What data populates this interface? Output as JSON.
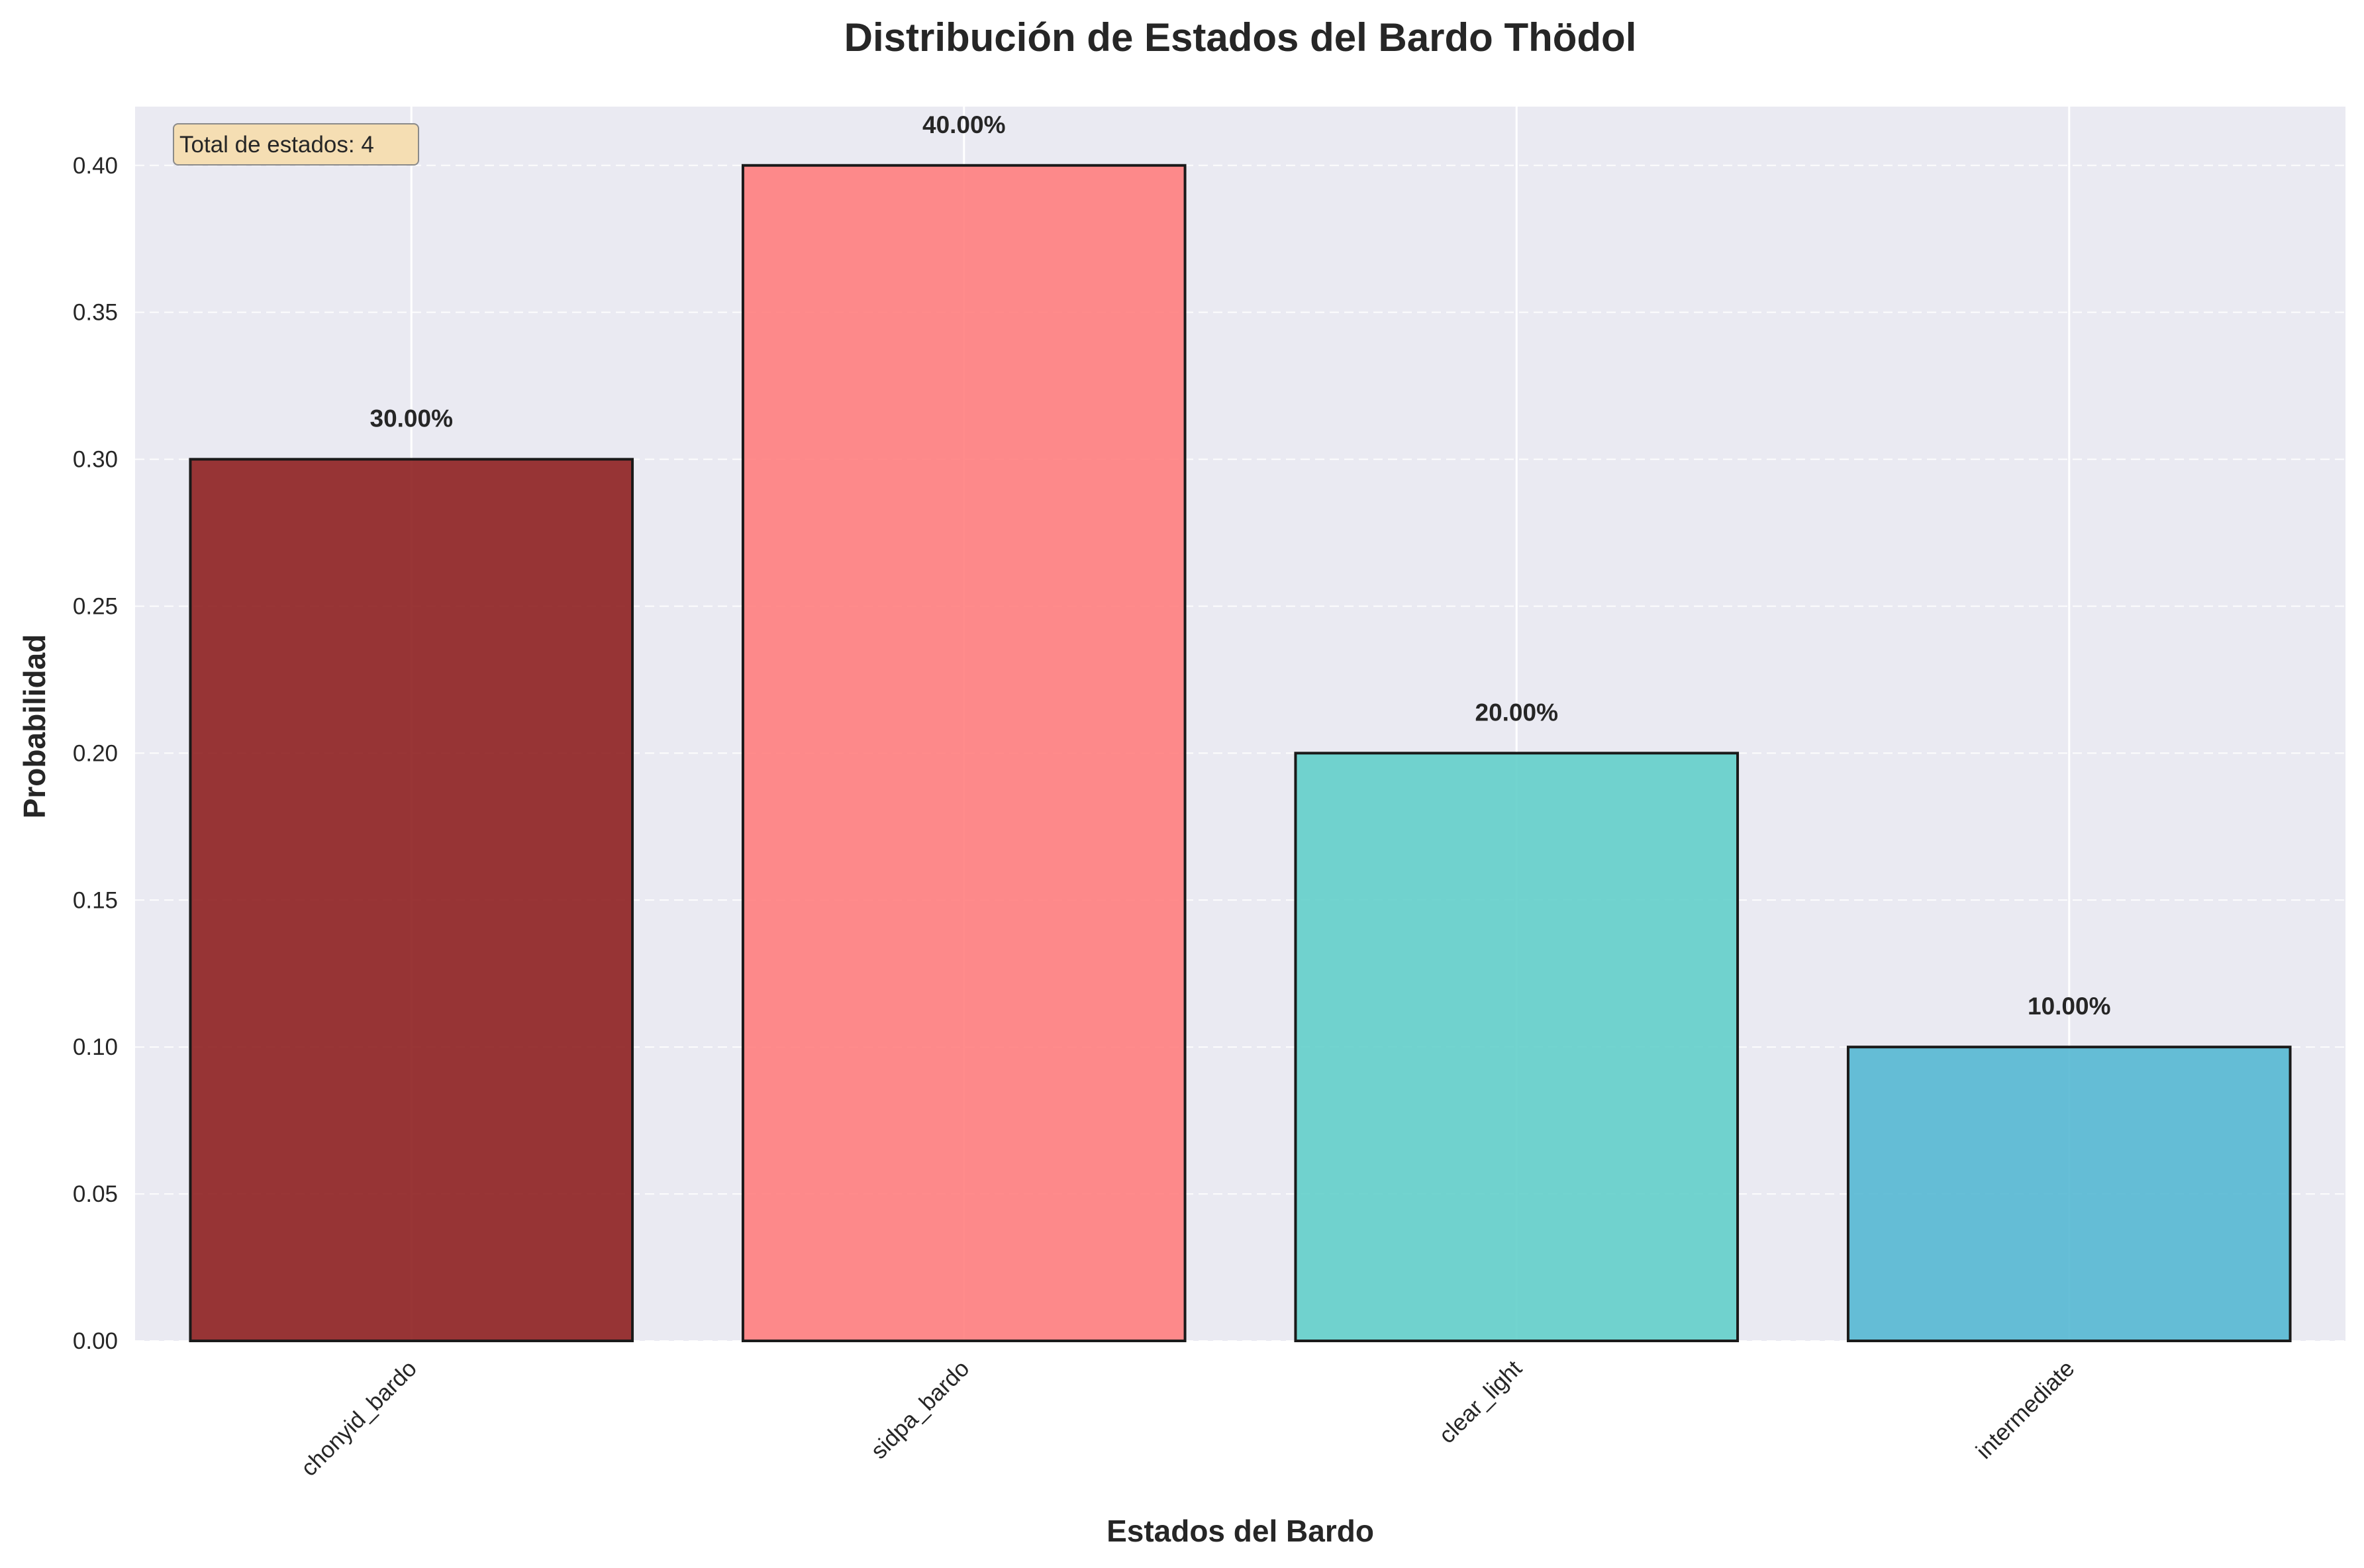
{
  "chart_data": {
    "type": "bar",
    "title": "Distribución de Estados del Bardo Thödol",
    "xlabel": "Estados del Bardo",
    "ylabel": "Probabilidad",
    "categories": [
      "chonyid_bardo",
      "sidpa_bardo",
      "clear_light",
      "intermediate"
    ],
    "values": [
      0.3,
      0.4,
      0.2,
      0.1
    ],
    "value_labels": [
      "30.00%",
      "40.00%",
      "20.00%",
      "10.00%"
    ],
    "bar_colors": [
      "#8b1a1a",
      "#ff7b7b",
      "#5ecec8",
      "#51b6d2"
    ],
    "ylim": [
      0,
      0.42
    ],
    "yticks": [
      0.0,
      0.05,
      0.1,
      0.15,
      0.2,
      0.25,
      0.3,
      0.35,
      0.4
    ],
    "ytick_labels": [
      "0.00",
      "0.05",
      "0.10",
      "0.15",
      "0.20",
      "0.25",
      "0.30",
      "0.35",
      "0.40"
    ],
    "grid": true,
    "annotation": "Total de estados: 4"
  },
  "colors": {
    "plot_background": "#eaeaf2",
    "grid": "#ffffff",
    "annotation_background": "#f5deb3"
  }
}
